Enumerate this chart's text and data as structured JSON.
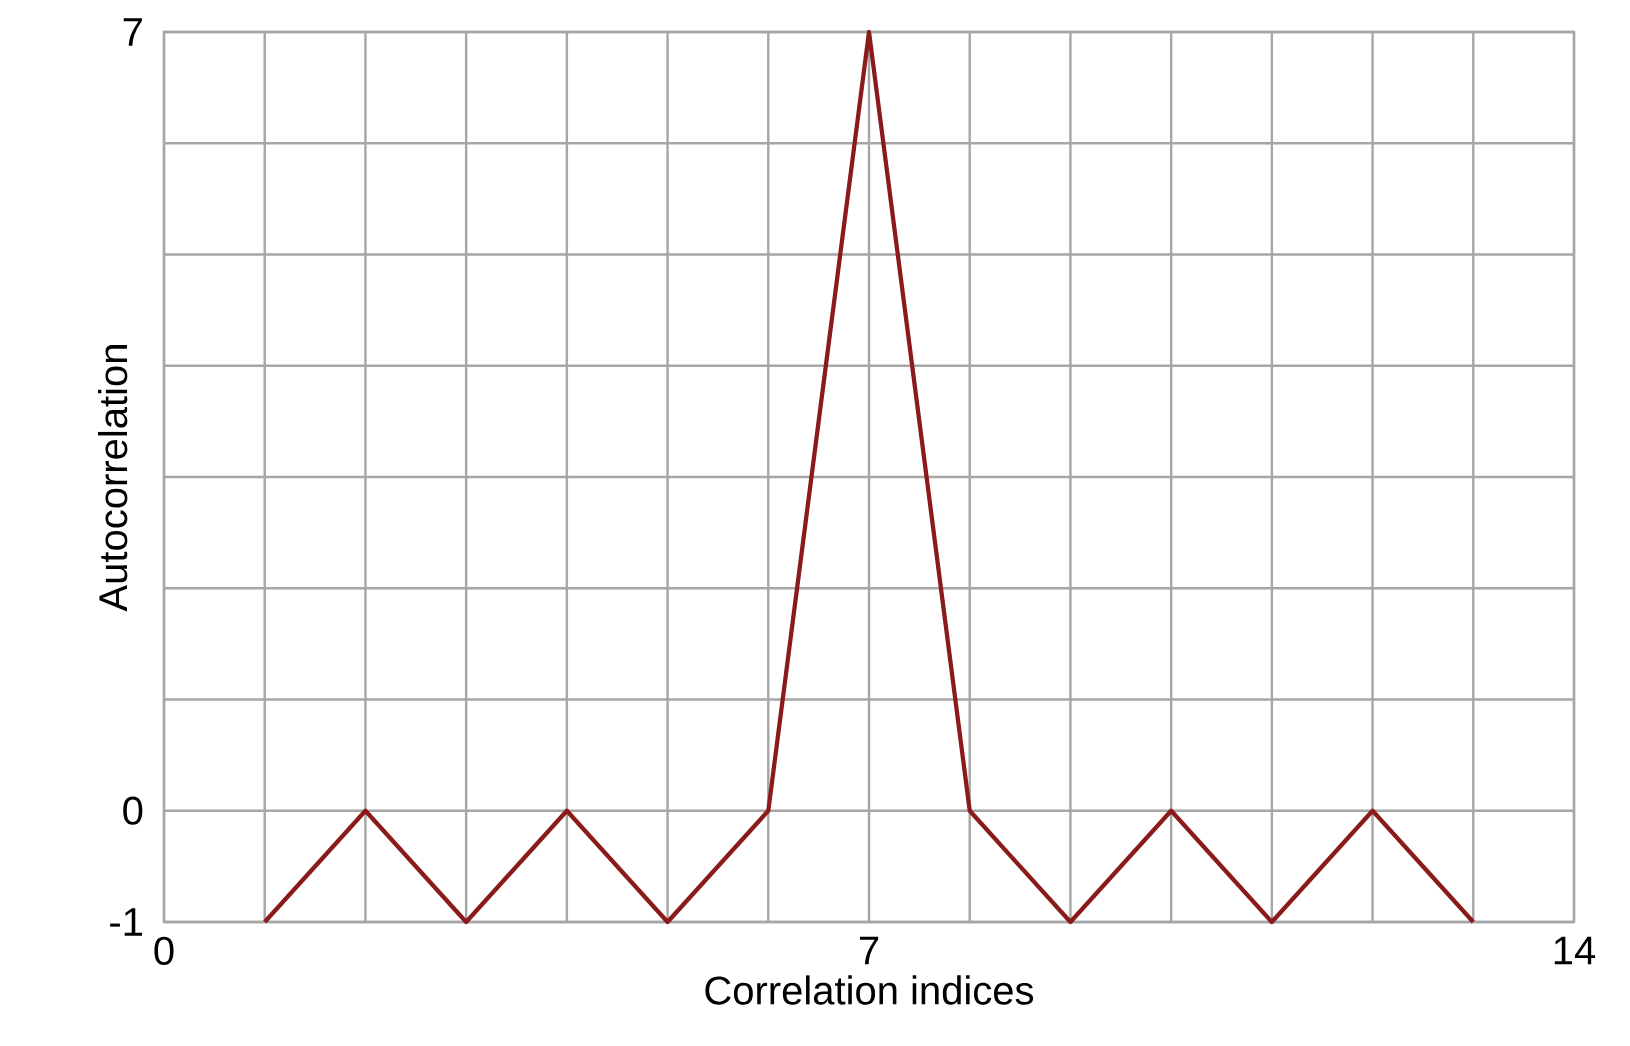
{
  "chart_data": {
    "type": "line",
    "xlabel": "Correlation indices",
    "ylabel": "Autocorrelation",
    "x": [
      1,
      2,
      3,
      4,
      5,
      6,
      7,
      8,
      9,
      10,
      11,
      12,
      13
    ],
    "series": [
      {
        "color": "#8b1a1a",
        "values": [
          -1,
          0,
          -1,
          0,
          -1,
          0,
          7,
          0,
          -1,
          0,
          -1,
          0,
          -1
        ]
      }
    ],
    "xlim": [
      0,
      14
    ],
    "xticks": [
      0,
      {
        "value": 1,
        "label": null
      },
      {
        "value": 2,
        "label": null
      },
      {
        "value": 3,
        "label": null
      },
      {
        "value": 4,
        "label": null
      },
      {
        "value": 5,
        "label": null
      },
      {
        "value": 6,
        "label": null
      },
      7,
      {
        "value": 8,
        "label": null
      },
      {
        "value": 9,
        "label": null
      },
      {
        "value": 10,
        "label": null
      },
      {
        "value": 11,
        "label": null
      },
      {
        "value": 12,
        "label": null
      },
      {
        "value": 13,
        "label": null
      },
      14
    ],
    "ylim": [
      -1,
      7
    ],
    "yticks": [
      -1,
      0,
      {
        "value": 1,
        "label": null
      },
      {
        "value": 2,
        "label": null
      },
      {
        "value": 3,
        "label": null
      },
      {
        "value": 4,
        "label": null
      },
      {
        "value": 5,
        "label": null
      },
      {
        "value": 6,
        "label": null
      },
      7
    ],
    "grid": true,
    "marker": "none",
    "line_style": "solid"
  }
}
